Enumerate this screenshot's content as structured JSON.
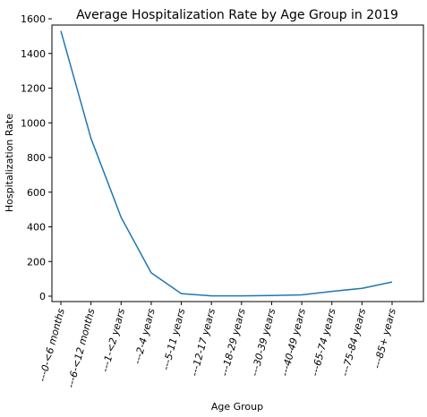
{
  "chart_data": {
    "type": "line",
    "title": "Average Hospitalization Rate by Age Group in 2019",
    "xlabel": "Age Group",
    "ylabel": "Hospitalization Rate",
    "categories": [
      "---0-<6 months",
      "---6-<12 months",
      "---1-<2 years",
      "---2-4 years",
      "---5-11 years",
      "---12-17 years",
      "---18-29 years",
      "---30-39 years",
      "---40-49 years",
      "---65-74 years",
      "---75-84 years",
      "---85+ years"
    ],
    "series": [
      {
        "values": [
          1530,
          910,
          455,
          135,
          15,
          2,
          2,
          4,
          8,
          28,
          45,
          82
        ]
      }
    ],
    "yticks": [
      0,
      200,
      400,
      600,
      800,
      1000,
      1200,
      1400,
      1600
    ],
    "ylim": [
      -20,
      1600
    ],
    "grid": false,
    "color": "#1f77b4"
  }
}
